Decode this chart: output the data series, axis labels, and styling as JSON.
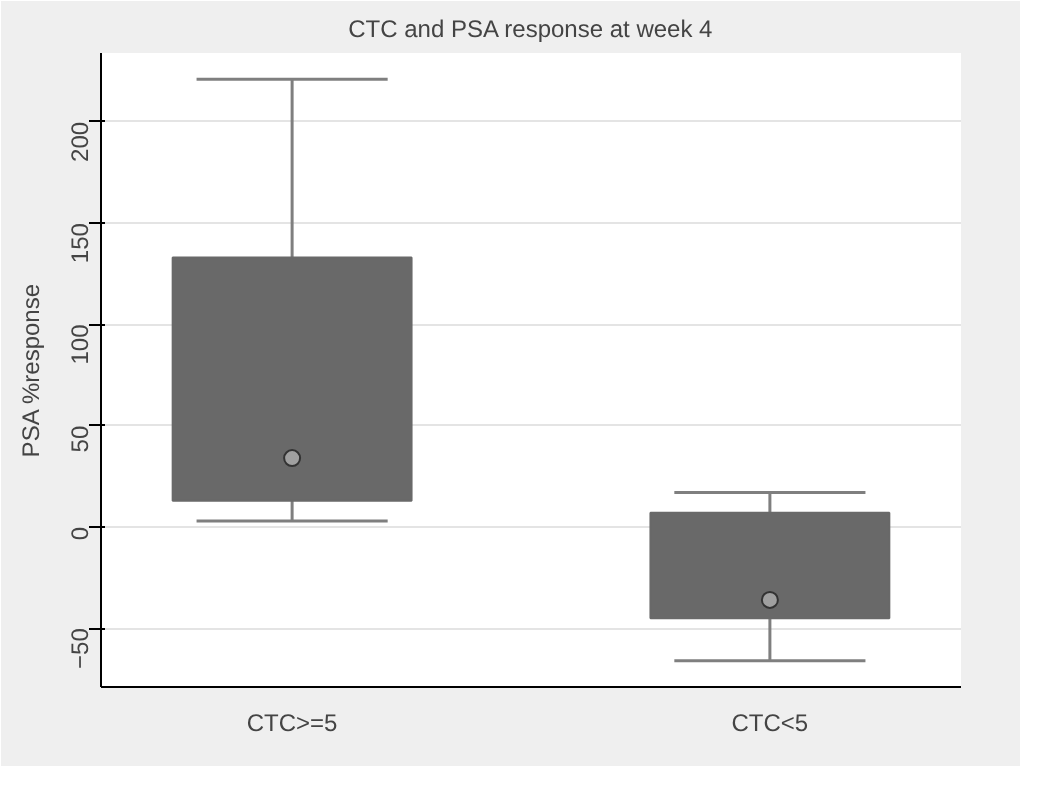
{
  "chart_data": {
    "type": "box",
    "title": "CTC and PSA response at week 4",
    "ylabel": "PSA %response",
    "categories": [
      "CTC>=5",
      "CTC<5"
    ],
    "boxes": [
      {
        "low": 3,
        "q1": 13,
        "median": 34,
        "q3": 133,
        "high": 221
      },
      {
        "low": -66,
        "q1": -45,
        "median": -36,
        "q3": 7,
        "high": 17
      }
    ],
    "color": "#696969",
    "ylim": [
      -79,
      234
    ],
    "yticks": [
      -50,
      0,
      50,
      100,
      150,
      200
    ],
    "grid": "y"
  }
}
